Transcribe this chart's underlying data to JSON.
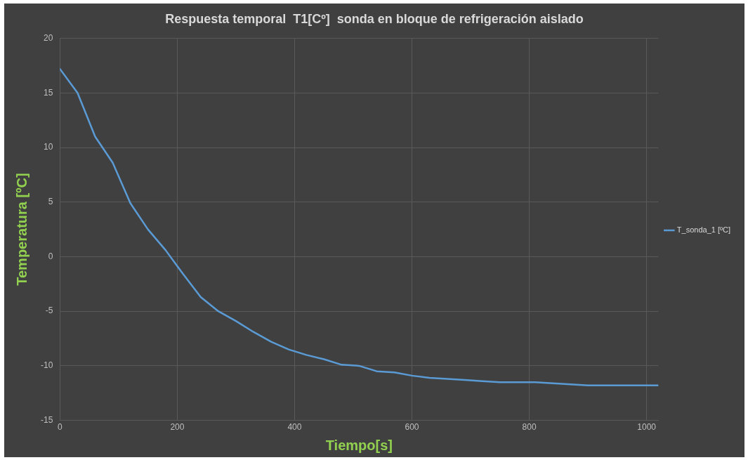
{
  "chart_data": {
    "type": "line",
    "title": "Respuesta temporal  T1[Cº]  sonda en bloque de refrigeración aislado",
    "xlabel": "Tiempo[s]",
    "ylabel": "Temperatura [ºC]",
    "x": [
      0,
      30,
      60,
      90,
      120,
      150,
      180,
      210,
      240,
      270,
      300,
      330,
      360,
      390,
      420,
      450,
      480,
      510,
      540,
      570,
      600,
      630,
      660,
      690,
      720,
      750,
      780,
      810,
      840,
      870,
      900,
      1020
    ],
    "series": [
      {
        "name": "T_sonda_1 [ºC]",
        "color": "#5b9bd5",
        "values": [
          17.2,
          15.0,
          11.0,
          8.6,
          4.9,
          2.5,
          0.6,
          -1.6,
          -3.7,
          -5.0,
          -5.9,
          -6.9,
          -7.8,
          -8.5,
          -9.0,
          -9.4,
          -9.9,
          -10.0,
          -10.5,
          -10.6,
          -10.9,
          -11.1,
          -11.2,
          -11.3,
          -11.4,
          -11.5,
          -11.5,
          -11.5,
          -11.6,
          -11.7,
          -11.8,
          -11.8
        ]
      }
    ],
    "xlim": [
      0,
      1020
    ],
    "xticks": [
      0,
      200,
      400,
      600,
      800,
      1000
    ],
    "ylim": [
      -15,
      20
    ],
    "yticks": [
      -15,
      -10,
      -5,
      0,
      5,
      10,
      15,
      20
    ],
    "grid": true,
    "legend": "right",
    "marker": "none",
    "line_style": "solid"
  }
}
